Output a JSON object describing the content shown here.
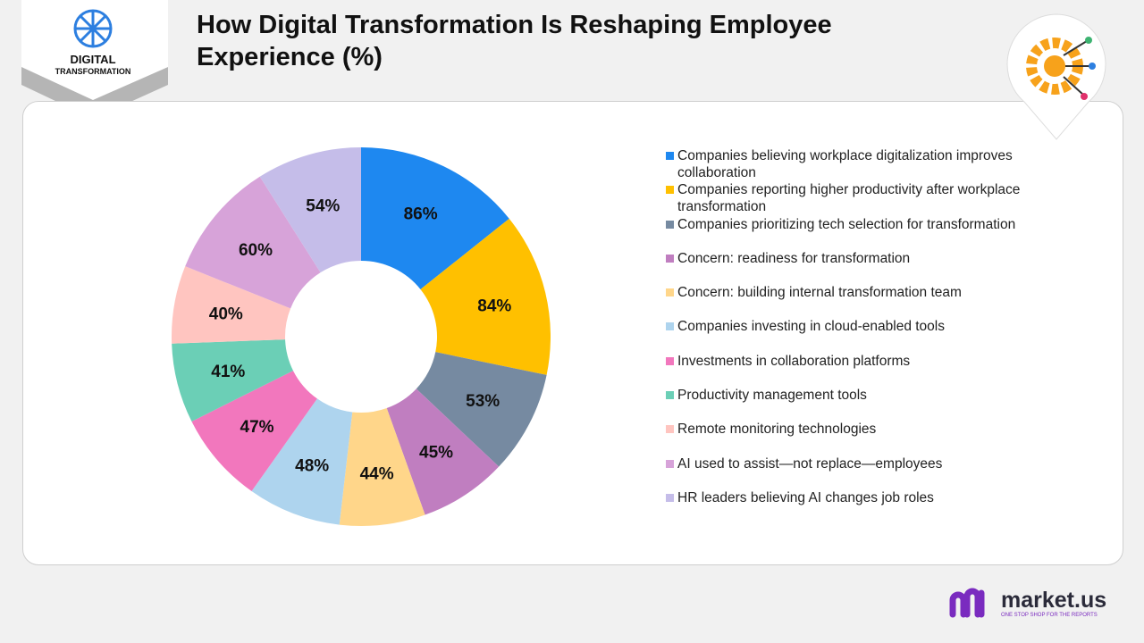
{
  "logo": {
    "line1": "DIGITAL",
    "line2": "TRANSFORMATION"
  },
  "brand": {
    "name": "market.us",
    "tagline": "ONE STOP SHOP FOR THE REPORTS"
  },
  "chart_data": {
    "type": "donut",
    "title": "How Digital Transformation Is Reshaping Employee Experience (%)",
    "categories": [
      "Companies believing workplace digitalization improves collaboration",
      "Companies reporting higher productivity after workplace transformation",
      "Companies prioritizing tech selection for transformation",
      "Concern: readiness for transformation",
      "Concern: building internal transformation team",
      "Companies investing in cloud-enabled tools",
      "Investments in collaboration platforms",
      "Productivity management tools",
      "Remote monitoring technologies",
      "AI used to assist—not replace—employees",
      "HR leaders believing AI changes job roles"
    ],
    "values": [
      86,
      84,
      53,
      45,
      44,
      48,
      47,
      41,
      40,
      60,
      54
    ],
    "value_labels": [
      "86%",
      "84%",
      "53%",
      "45%",
      "44%",
      "48%",
      "47%",
      "41%",
      "40%",
      "60%",
      "54%"
    ],
    "colors": [
      "#1e88f0",
      "#ffc000",
      "#768aa1",
      "#c07ec0",
      "#ffd68a",
      "#aed4ee",
      "#f277bd",
      "#6bcfb6",
      "#ffc5c0",
      "#d7a3d9",
      "#c5bde9"
    ]
  }
}
